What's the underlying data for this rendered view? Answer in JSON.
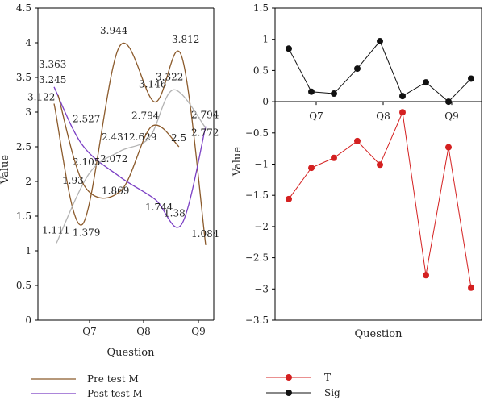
{
  "chart_data": [
    {
      "type": "line",
      "smooth": true,
      "xlabel": "Question",
      "ylabel": "Value",
      "ylim": [
        0,
        4.5
      ],
      "yticks": [
        "0",
        "0.5",
        "1",
        "1.5",
        "2",
        "2.5",
        "3",
        "3.5",
        "4",
        "4.5"
      ],
      "xticks": [
        "Q7",
        "Q8",
        "Q9"
      ],
      "grid": false,
      "legend_position": "bottom",
      "series": [
        {
          "name": "Pre test M",
          "color": "#8b5a2b",
          "labels": [
            "3.122",
            "1.379",
            "3.944",
            "3.146",
            "3.812",
            "1.084"
          ],
          "values": [
            3.122,
            1.379,
            3.944,
            3.146,
            3.812,
            1.084
          ]
        },
        {
          "name": "Post test M",
          "color": "#7b3fc4",
          "labels": [
            "3.363",
            "2.527",
            "2.072",
            "1.744",
            "1.38",
            "2.794"
          ],
          "values": [
            3.363,
            2.527,
            2.072,
            1.744,
            1.38,
            2.794
          ]
        },
        {
          "name": "",
          "color": "#b3b3b3",
          "labels": [
            "1.111",
            "2.105",
            "2.431",
            "2.629",
            "3.322",
            "2.772"
          ],
          "values": [
            1.111,
            2.105,
            2.431,
            2.629,
            3.322,
            2.772
          ]
        },
        {
          "name": "",
          "color": "#8b5a2b",
          "labels": [
            "3.245",
            "1.93",
            "1.869",
            "2.794",
            "2.5"
          ],
          "values": [
            3.245,
            1.93,
            1.869,
            2.794,
            2.5
          ]
        }
      ]
    },
    {
      "type": "line",
      "xlabel": "Question",
      "ylabel": "Value",
      "ylim": [
        -3.5,
        1.5
      ],
      "yticks": [
        "−3.5",
        "−3",
        "−2.5",
        "−2",
        "−1.5",
        "−1",
        "−0.5",
        "0",
        "0.5",
        "1",
        "1.5"
      ],
      "xticks": [
        "Q7",
        "Q8",
        "Q9"
      ],
      "grid": false,
      "legend_position": "bottom",
      "series": [
        {
          "name": "T",
          "color": "#d42020",
          "values": [
            -1.56,
            -1.06,
            -0.9,
            -0.63,
            -1.01,
            -0.17,
            -2.78,
            -0.73,
            -2.98
          ]
        },
        {
          "name": "Sig",
          "color": "#111111",
          "values": [
            0.85,
            0.16,
            0.13,
            0.53,
            0.97,
            0.09,
            0.31,
            0.0,
            0.37
          ]
        }
      ]
    }
  ]
}
